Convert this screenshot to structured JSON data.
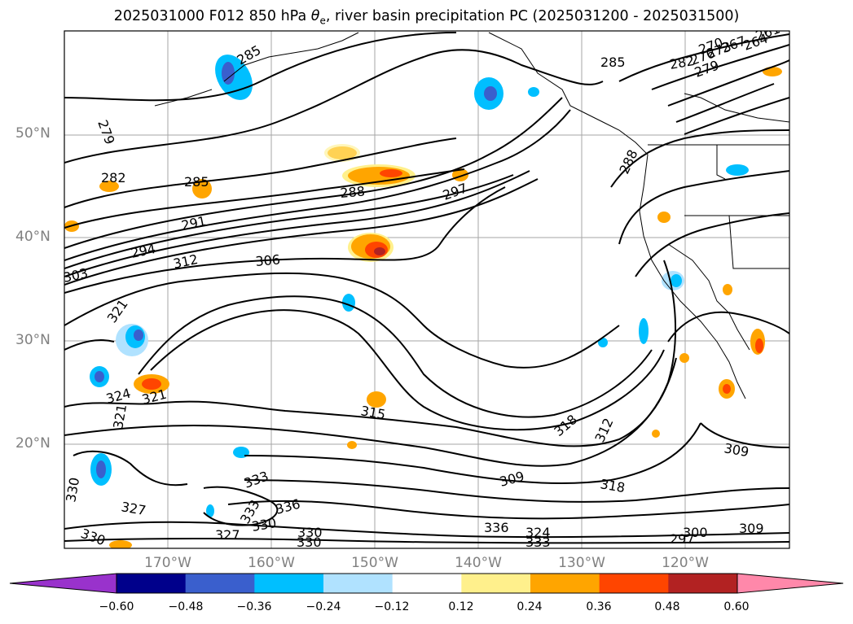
{
  "title": {
    "prefix": "2025031000 F012 850 hPa ",
    "theta": "θ",
    "theta_sub": "e",
    "suffix": ", river basin precipitation PC (2025031200 - 2025031500)"
  },
  "map": {
    "lat_labels": [
      "50°N",
      "40°N",
      "30°N",
      "20°N"
    ],
    "lon_labels": [
      "170°W",
      "160°W",
      "150°W",
      "140°W",
      "130°W",
      "120°W"
    ],
    "contour_color": "#000000",
    "land_border_color": "#000000",
    "grid_color": "#808080",
    "contour_labels": [
      "285",
      "279",
      "282",
      "285",
      "288",
      "291",
      "294",
      "303",
      "312",
      "306",
      "297",
      "288",
      "285",
      "282",
      "279",
      "276",
      "273",
      "270",
      "267",
      "264",
      "261",
      "321",
      "324",
      "321",
      "321",
      "315",
      "318",
      "312",
      "309",
      "309",
      "318",
      "330",
      "327",
      "330",
      "333",
      "327",
      "330",
      "333",
      "330",
      "336",
      "330",
      "336",
      "333",
      "324",
      "297",
      "300",
      "309"
    ]
  },
  "colorbar": {
    "ticks": [
      "−0.60",
      "−0.48",
      "−0.36",
      "−0.24",
      "−0.12",
      "0.12",
      "0.24",
      "0.36",
      "0.48",
      "0.60"
    ],
    "colors": [
      "#9932cc",
      "#00008b",
      "#3a5fcd",
      "#00bfff",
      "#b0e2ff",
      "#ffffff",
      "#fff08c",
      "#ffa500",
      "#ff4500",
      "#b22222",
      "#ff88aa"
    ]
  }
}
